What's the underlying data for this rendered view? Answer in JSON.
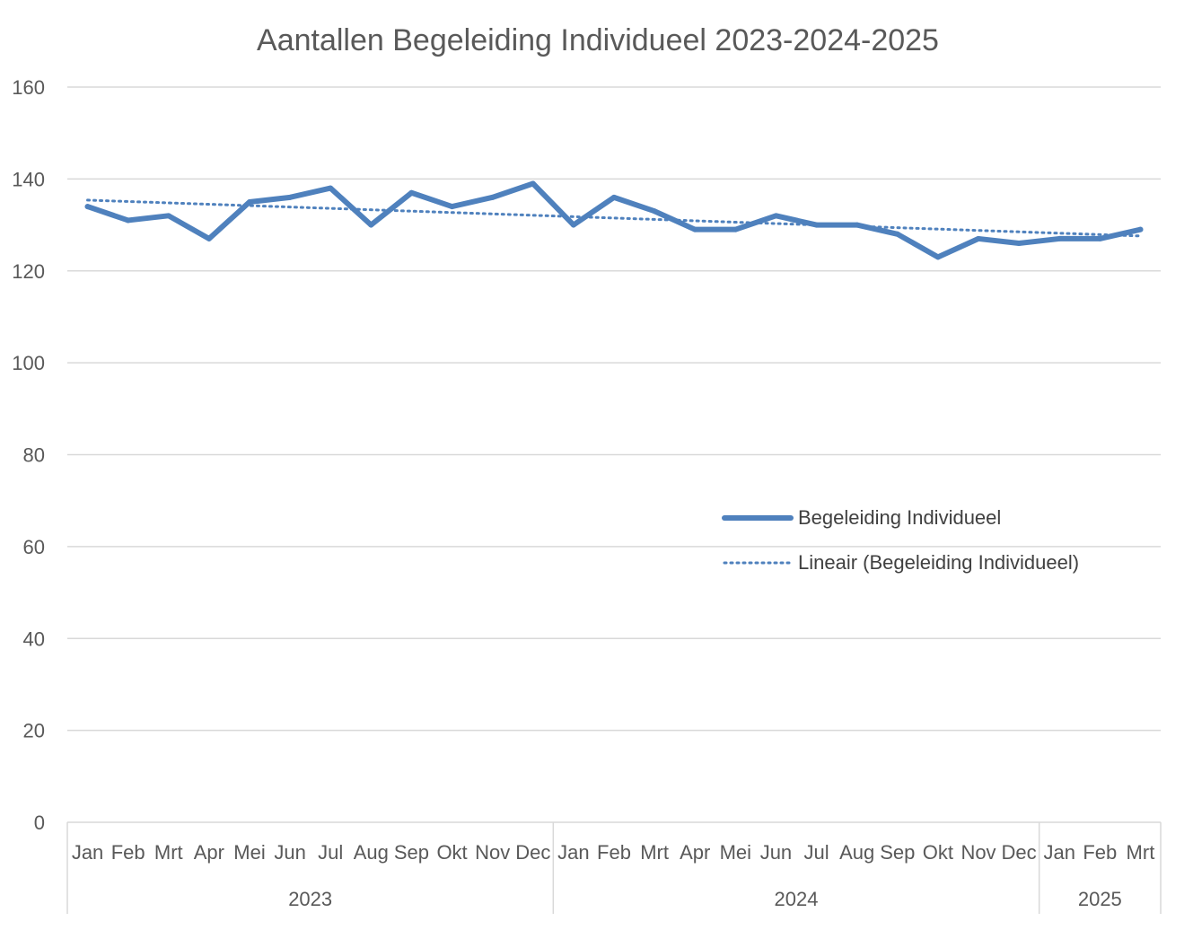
{
  "chart_data": {
    "type": "line",
    "title": "Aantallen Begeleiding Individueel 2023-2024-2025",
    "xlabel": "",
    "ylabel": "",
    "ylim": [
      0,
      160
    ],
    "yticks": [
      "0",
      "20",
      "40",
      "60",
      "80",
      "100",
      "120",
      "140",
      "160"
    ],
    "grid": true,
    "legend_position": "right-center",
    "categories": [
      "Jan",
      "Feb",
      "Mrt",
      "Apr",
      "Mei",
      "Jun",
      "Jul",
      "Aug",
      "Sep",
      "Okt",
      "Nov",
      "Dec",
      "Jan",
      "Feb",
      "Mrt",
      "Apr",
      "Mei",
      "Jun",
      "Jul",
      "Aug",
      "Sep",
      "Okt",
      "Nov",
      "Dec",
      "Jan",
      "Feb",
      "Mrt"
    ],
    "groups": [
      {
        "label": "2023",
        "count": 12
      },
      {
        "label": "2024",
        "count": 12
      },
      {
        "label": "2025",
        "count": 3
      }
    ],
    "series": [
      {
        "name": "Begeleiding Individueel",
        "values": [
          134,
          131,
          132,
          127,
          135,
          136,
          138,
          130,
          137,
          134,
          136,
          139,
          130,
          136,
          133,
          129,
          129,
          132,
          130,
          130,
          128,
          123,
          127,
          126,
          127,
          127,
          129
        ],
        "color": "#4F81BD",
        "style": "solid"
      },
      {
        "name": "Lineair (Begeleiding Individueel)",
        "trendline_of": "Begeleiding Individueel",
        "values": [
          135.4,
          135.1,
          134.8,
          134.5,
          134.2,
          133.9,
          133.6,
          133.3,
          133.0,
          132.7,
          132.4,
          132.1,
          131.8,
          131.5,
          131.2,
          130.9,
          130.6,
          130.3,
          130.0,
          129.7,
          129.4,
          129.1,
          128.8,
          128.5,
          128.2,
          127.9,
          127.6
        ],
        "color": "#4F81BD",
        "style": "dotted"
      }
    ]
  }
}
